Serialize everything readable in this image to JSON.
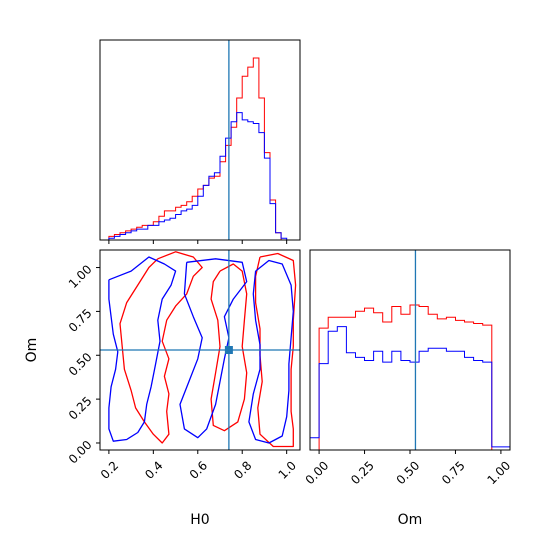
{
  "colors": {
    "red": "#ff0000",
    "blue": "#0000ff",
    "truth": "#1f77b4",
    "frame": "#000000"
  },
  "chart_data": [
    {
      "type": "histogram",
      "panel": "H0-marginal",
      "xlim": [
        0.16,
        1.06
      ],
      "bin_edges": [
        0.2,
        0.225,
        0.25,
        0.275,
        0.3,
        0.325,
        0.35,
        0.375,
        0.4,
        0.425,
        0.45,
        0.475,
        0.5,
        0.525,
        0.55,
        0.575,
        0.6,
        0.625,
        0.65,
        0.675,
        0.7,
        0.725,
        0.75,
        0.775,
        0.8,
        0.825,
        0.85,
        0.875,
        0.9,
        0.925,
        0.95,
        0.975,
        1.0
      ],
      "series": [
        {
          "color": "red",
          "counts": [
            2,
            3,
            4,
            5,
            6,
            7,
            8,
            8,
            10,
            13,
            16,
            16,
            18,
            19,
            21,
            24,
            28,
            30,
            34,
            35,
            43,
            52,
            62,
            78,
            90,
            95,
            100,
            78,
            48,
            22,
            4,
            0
          ]
        },
        {
          "color": "blue",
          "counts": [
            1,
            2,
            3,
            4,
            5,
            6,
            6,
            8,
            8,
            10,
            11,
            12,
            14,
            16,
            17,
            19,
            24,
            30,
            35,
            37,
            46,
            56,
            65,
            70,
            66,
            65,
            64,
            59,
            45,
            20,
            4,
            1
          ]
        }
      ],
      "truth_x": 0.74,
      "x_ticks": [
        0.2,
        0.4,
        0.6,
        0.8,
        1.0
      ]
    },
    {
      "type": "contour",
      "panel": "H0-Om-2d",
      "xlabel": "H0",
      "ylabel": "Om",
      "xlim": [
        0.16,
        1.06
      ],
      "ylim": [
        -0.04,
        1.1
      ],
      "x_ticks": [
        "0.2",
        "0.4",
        "0.6",
        "0.8",
        "1.0"
      ],
      "y_ticks": [
        "0.00",
        "0.25",
        "0.50",
        "0.75",
        "1.00"
      ],
      "truth": {
        "x": 0.74,
        "y": 0.53
      },
      "series": [
        {
          "color": "red",
          "contours": [
            [
              [
                0.42,
                1.05
              ],
              [
                0.5,
                1.09
              ],
              [
                0.58,
                1.06
              ],
              [
                0.62,
                1.0
              ],
              [
                0.58,
                0.95
              ],
              [
                0.55,
                0.85
              ],
              [
                0.5,
                0.78
              ],
              [
                0.46,
                0.7
              ],
              [
                0.44,
                0.58
              ],
              [
                0.47,
                0.48
              ],
              [
                0.45,
                0.38
              ],
              [
                0.47,
                0.28
              ],
              [
                0.46,
                0.18
              ],
              [
                0.47,
                0.05
              ],
              [
                0.44,
                0.0
              ],
              [
                0.4,
                0.05
              ],
              [
                0.36,
                0.12
              ],
              [
                0.32,
                0.2
              ],
              [
                0.3,
                0.3
              ],
              [
                0.27,
                0.42
              ],
              [
                0.26,
                0.55
              ],
              [
                0.25,
                0.68
              ],
              [
                0.28,
                0.8
              ],
              [
                0.34,
                0.92
              ],
              [
                0.38,
                1.0
              ],
              [
                0.42,
                1.05
              ]
            ],
            [
              [
                0.7,
                0.98
              ],
              [
                0.76,
                1.02
              ],
              [
                0.8,
                0.98
              ],
              [
                0.82,
                0.85
              ],
              [
                0.81,
                0.7
              ],
              [
                0.8,
                0.55
              ],
              [
                0.82,
                0.4
              ],
              [
                0.81,
                0.25
              ],
              [
                0.78,
                0.12
              ],
              [
                0.72,
                0.07
              ],
              [
                0.67,
                0.1
              ],
              [
                0.66,
                0.25
              ],
              [
                0.68,
                0.4
              ],
              [
                0.7,
                0.55
              ],
              [
                0.69,
                0.7
              ],
              [
                0.66,
                0.82
              ],
              [
                0.67,
                0.92
              ],
              [
                0.7,
                0.98
              ]
            ],
            [
              [
                0.88,
                1.06
              ],
              [
                0.96,
                1.08
              ],
              [
                1.03,
                1.04
              ],
              [
                1.04,
                0.9
              ],
              [
                1.03,
                0.7
              ],
              [
                1.03,
                0.55
              ],
              [
                1.02,
                0.42
              ],
              [
                1.02,
                0.3
              ],
              [
                1.02,
                0.18
              ],
              [
                1.03,
                0.08
              ],
              [
                1.03,
                -0.02
              ],
              [
                0.94,
                -0.02
              ],
              [
                0.88,
                0.05
              ],
              [
                0.87,
                0.2
              ],
              [
                0.89,
                0.35
              ],
              [
                0.88,
                0.5
              ],
              [
                0.88,
                0.65
              ],
              [
                0.86,
                0.8
              ],
              [
                0.86,
                0.95
              ],
              [
                0.88,
                1.06
              ]
            ]
          ]
        },
        {
          "color": "blue",
          "contours": [
            [
              [
                0.2,
                0.93
              ],
              [
                0.3,
                0.98
              ],
              [
                0.38,
                1.06
              ],
              [
                0.45,
                1.02
              ],
              [
                0.5,
                0.98
              ],
              [
                0.48,
                0.9
              ],
              [
                0.44,
                0.82
              ],
              [
                0.42,
                0.7
              ],
              [
                0.43,
                0.58
              ],
              [
                0.41,
                0.45
              ],
              [
                0.39,
                0.32
              ],
              [
                0.37,
                0.22
              ],
              [
                0.36,
                0.12
              ],
              [
                0.33,
                0.06
              ],
              [
                0.28,
                0.02
              ],
              [
                0.22,
                0.01
              ],
              [
                0.2,
                0.08
              ],
              [
                0.2,
                0.2
              ],
              [
                0.21,
                0.32
              ],
              [
                0.23,
                0.42
              ],
              [
                0.24,
                0.52
              ],
              [
                0.22,
                0.62
              ],
              [
                0.21,
                0.72
              ],
              [
                0.2,
                0.82
              ],
              [
                0.2,
                0.93
              ]
            ],
            [
              [
                0.55,
                1.03
              ],
              [
                0.68,
                1.05
              ],
              [
                0.8,
                1.03
              ],
              [
                0.82,
                0.92
              ],
              [
                0.76,
                0.82
              ],
              [
                0.72,
                0.72
              ],
              [
                0.74,
                0.6
              ],
              [
                0.72,
                0.48
              ],
              [
                0.7,
                0.35
              ],
              [
                0.68,
                0.22
              ],
              [
                0.64,
                0.08
              ],
              [
                0.6,
                0.03
              ],
              [
                0.54,
                0.08
              ],
              [
                0.52,
                0.22
              ],
              [
                0.56,
                0.35
              ],
              [
                0.6,
                0.48
              ],
              [
                0.62,
                0.6
              ],
              [
                0.58,
                0.72
              ],
              [
                0.54,
                0.85
              ],
              [
                0.55,
                1.03
              ]
            ],
            [
              [
                0.86,
                0.98
              ],
              [
                0.92,
                1.04
              ],
              [
                0.98,
                1.02
              ],
              [
                1.02,
                0.9
              ],
              [
                1.03,
                0.75
              ],
              [
                1.02,
                0.6
              ],
              [
                1.01,
                0.45
              ],
              [
                1.01,
                0.3
              ],
              [
                1.0,
                0.15
              ],
              [
                0.98,
                0.04
              ],
              [
                0.92,
                0.0
              ],
              [
                0.86,
                0.02
              ],
              [
                0.83,
                0.12
              ],
              [
                0.85,
                0.28
              ],
              [
                0.88,
                0.42
              ],
              [
                0.88,
                0.56
              ],
              [
                0.86,
                0.7
              ],
              [
                0.85,
                0.85
              ],
              [
                0.86,
                0.98
              ]
            ]
          ]
        }
      ]
    },
    {
      "type": "histogram",
      "panel": "Om-marginal",
      "xlabel": "Om",
      "xlim": [
        -0.05,
        1.05
      ],
      "bin_edges": [
        -0.05,
        0.0,
        0.05,
        0.1,
        0.15,
        0.2,
        0.25,
        0.3,
        0.35,
        0.4,
        0.45,
        0.5,
        0.55,
        0.6,
        0.65,
        0.7,
        0.75,
        0.8,
        0.85,
        0.9,
        0.95,
        1.0,
        1.05
      ],
      "series": [
        {
          "color": "red",
          "counts": [
            0,
            79,
            86,
            86,
            86,
            90,
            92,
            89,
            83,
            93,
            88,
            94,
            93,
            88,
            85,
            86,
            84,
            83,
            82,
            81,
            0,
            0
          ]
        },
        {
          "color": "blue",
          "counts": [
            8,
            56,
            77,
            80,
            63,
            60,
            58,
            64,
            57,
            64,
            58,
            57,
            64,
            66,
            66,
            64,
            64,
            60,
            58,
            57,
            2,
            2
          ]
        }
      ],
      "truth_x": 0.53,
      "x_ticks": [
        "0.00",
        "0.25",
        "0.50",
        "0.75",
        "1.00"
      ]
    }
  ]
}
